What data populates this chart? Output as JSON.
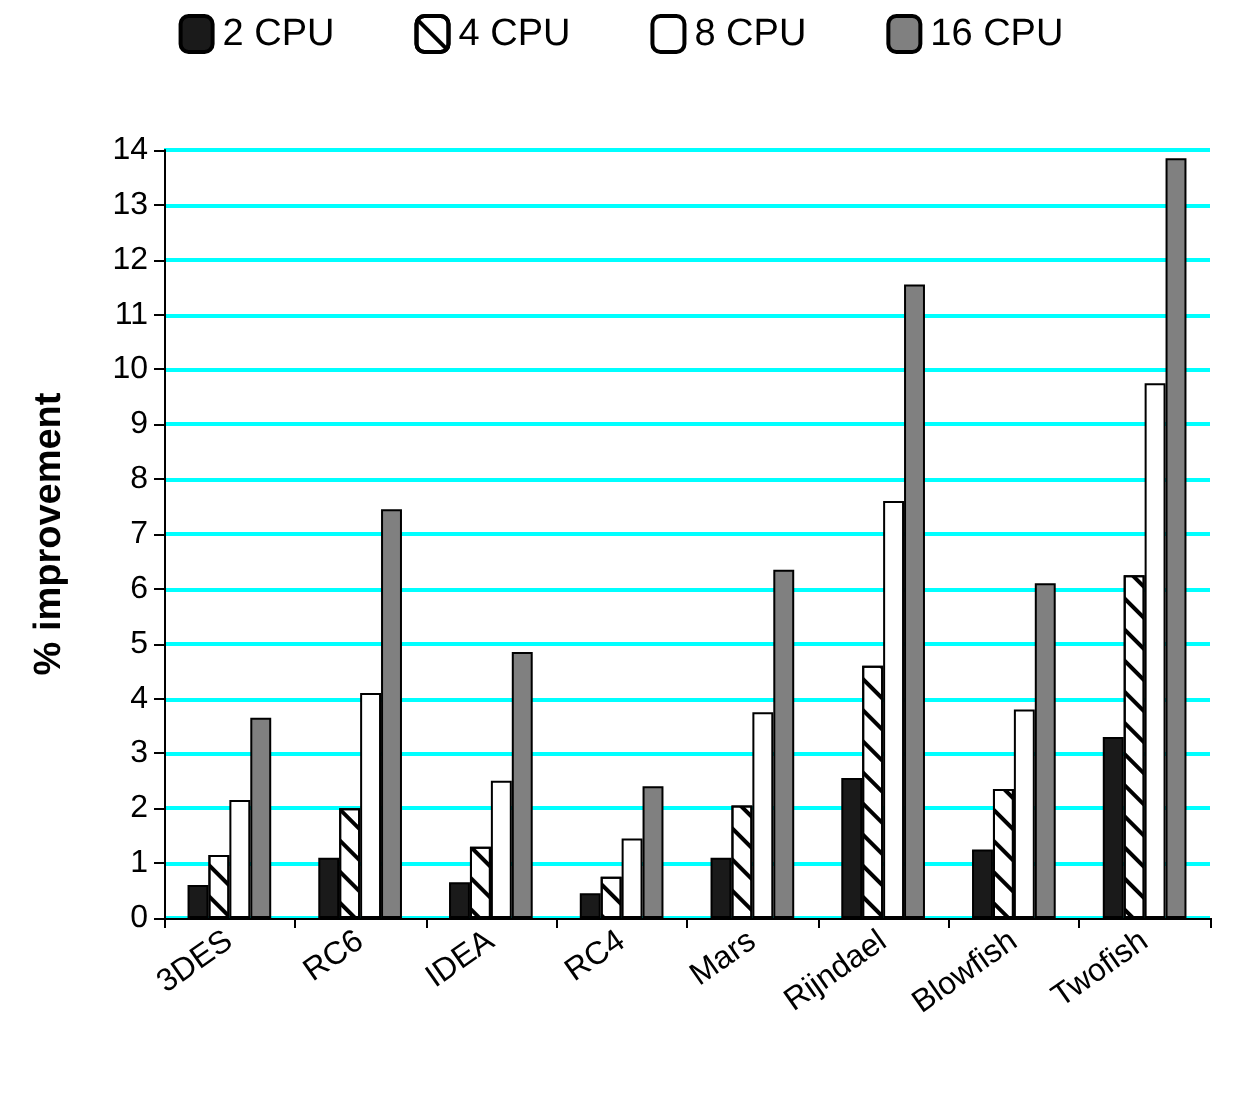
{
  "chart_data": {
    "type": "bar",
    "ylabel": "% improvement",
    "categories": [
      "3DES",
      "RC6",
      "IDEA",
      "RC4",
      "Mars",
      "Rijndael",
      "Blowfish",
      "Twofish"
    ],
    "series": [
      {
        "name": "2 CPU",
        "color": "#1a1a1a",
        "values": [
          0.6,
          1.1,
          0.65,
          0.45,
          1.1,
          2.55,
          1.25,
          3.3
        ]
      },
      {
        "name": "4 CPU",
        "color": "#ffffff",
        "values": [
          1.15,
          2.0,
          1.3,
          0.75,
          2.05,
          4.6,
          2.35,
          6.25
        ]
      },
      {
        "name": "8 CPU",
        "color": "#ffffff",
        "values": [
          2.15,
          4.1,
          2.5,
          1.45,
          3.75,
          7.6,
          3.8,
          9.75
        ]
      },
      {
        "name": "16 CPU",
        "color": "#808080",
        "values": [
          3.65,
          7.45,
          4.85,
          2.4,
          6.35,
          11.55,
          6.1,
          13.85
        ]
      }
    ],
    "ylim": [
      0,
      14
    ],
    "yticks": [
      0,
      1,
      2,
      3,
      4,
      5,
      6,
      7,
      8,
      9,
      10,
      11,
      12,
      13,
      14
    ],
    "grid": "y",
    "legend": "top"
  }
}
